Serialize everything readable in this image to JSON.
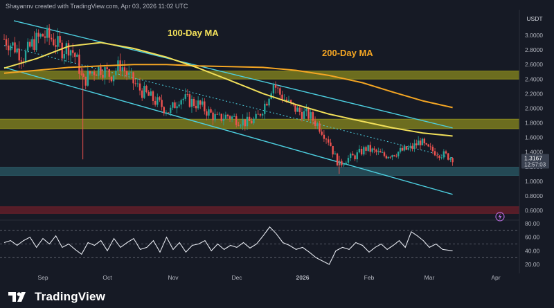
{
  "header": {
    "author_line": "Shayannv created with TradingView.com, Apr 03, 2026 11:02 UTC"
  },
  "currency": "USDT",
  "brand": {
    "name": "TradingView"
  },
  "colors": {
    "background": "#161a25",
    "up_candle": "#26a69a",
    "down_candle": "#ef5350",
    "ma100": "#f2e05a",
    "ma200": "#f5a623",
    "channel": "#4dd0e1",
    "zone_yellow": "#8a8a1e",
    "zone_blue": "#2a5a66",
    "zone_red": "#6b1f2a",
    "rsi_line": "#e6e9f0",
    "price_badge": "#3a4150"
  },
  "chart_data": {
    "type": "line",
    "title": "",
    "price_axis": {
      "ticks": [
        "3.0000",
        "2.8000",
        "2.6000",
        "2.4000",
        "2.2000",
        "2.0000",
        "1.8000",
        "1.6000",
        "1.4000",
        "1.2000",
        "1.0000",
        "0.8000",
        "0.6000"
      ],
      "range": [
        0.55,
        3.2
      ]
    },
    "time_axis": {
      "labels": [
        "Sep",
        "Oct",
        "Nov",
        "Dec",
        "2026",
        "Feb",
        "Mar",
        "Apr"
      ],
      "month_index": [
        0,
        1,
        2,
        3,
        4,
        5,
        6,
        7
      ]
    },
    "price_series": {
      "name": "",
      "x_month": [
        0.0,
        0.15,
        0.3,
        0.45,
        0.6,
        0.75,
        0.9,
        1.0,
        1.08,
        1.15,
        1.22,
        1.35,
        1.5,
        1.65,
        1.8,
        1.95,
        2.1,
        2.25,
        2.4,
        2.55,
        2.7,
        2.85,
        3.0,
        3.15,
        3.3,
        3.45,
        3.6,
        3.75,
        3.9,
        4.05,
        4.15,
        4.25,
        4.4,
        4.55,
        4.7,
        4.85,
        5.0,
        5.08,
        5.15,
        5.25,
        5.4,
        5.55,
        5.7,
        5.85,
        6.0,
        6.15,
        6.3,
        6.45,
        6.55,
        6.7,
        6.85,
        6.95
      ],
      "close": [
        2.95,
        2.85,
        2.7,
        2.9,
        3.0,
        2.95,
        2.8,
        2.85,
        2.75,
        2.6,
        2.35,
        2.5,
        2.55,
        2.45,
        2.6,
        2.4,
        2.25,
        2.15,
        2.05,
        1.95,
        2.15,
        2.1,
        2.05,
        1.95,
        1.85,
        1.9,
        1.85,
        1.8,
        1.85,
        2.1,
        2.35,
        2.2,
        2.05,
        1.95,
        1.9,
        1.75,
        1.55,
        1.35,
        1.22,
        1.3,
        1.35,
        1.45,
        1.4,
        1.35,
        1.38,
        1.42,
        1.45,
        1.55,
        1.45,
        1.4,
        1.35,
        1.32
      ]
    },
    "current_price_label": "1.3167",
    "countdown_label": "12:57:03",
    "ma100": {
      "name": "100-Day MA",
      "x_month": [
        0.0,
        0.5,
        1.0,
        1.5,
        2.0,
        2.5,
        3.0,
        3.5,
        4.0,
        4.5,
        5.0,
        5.5,
        6.0,
        6.5,
        6.95
      ],
      "values": [
        2.55,
        2.68,
        2.85,
        2.9,
        2.82,
        2.7,
        2.55,
        2.38,
        2.2,
        2.05,
        1.92,
        1.82,
        1.73,
        1.66,
        1.62
      ]
    },
    "ma200": {
      "name": "200-Day MA",
      "x_month": [
        0.0,
        0.5,
        1.0,
        1.5,
        2.0,
        2.5,
        3.0,
        3.5,
        4.0,
        4.5,
        5.0,
        5.5,
        6.0,
        6.5,
        6.95
      ],
      "values": [
        2.48,
        2.52,
        2.56,
        2.58,
        2.6,
        2.6,
        2.58,
        2.57,
        2.56,
        2.52,
        2.45,
        2.35,
        2.22,
        2.1,
        2.01
      ]
    },
    "channel_upper": {
      "x_month": [
        0.15,
        6.95
      ],
      "values": [
        3.2,
        1.73
      ]
    },
    "channel_lower": {
      "x_month": [
        0.0,
        6.95
      ],
      "values": [
        2.56,
        0.82
      ]
    },
    "channel_mid": {
      "x_month": [
        0.0,
        6.95
      ],
      "values": [
        2.86,
        1.32
      ]
    },
    "zones": [
      {
        "name": "resistance-upper",
        "low": 2.4,
        "high": 2.51,
        "color": "#8a8a1e"
      },
      {
        "name": "resistance-lower",
        "low": 1.72,
        "high": 1.85,
        "color": "#8a8a1e"
      },
      {
        "name": "support",
        "low": 1.08,
        "high": 1.19,
        "color": "#2a5a66"
      },
      {
        "name": "demand",
        "low": 0.56,
        "high": 0.65,
        "color": "#6b1f2a"
      }
    ],
    "rsi": {
      "ticks": [
        "80.00",
        "60.00",
        "40.00",
        "20.00"
      ],
      "range": [
        15,
        82
      ],
      "bands": [
        70,
        50,
        30
      ],
      "x_month": [
        0.0,
        0.1,
        0.2,
        0.3,
        0.4,
        0.5,
        0.6,
        0.7,
        0.8,
        0.9,
        1.0,
        1.1,
        1.2,
        1.3,
        1.4,
        1.5,
        1.6,
        1.7,
        1.8,
        1.9,
        2.0,
        2.1,
        2.2,
        2.3,
        2.4,
        2.5,
        2.6,
        2.7,
        2.8,
        2.9,
        3.0,
        3.1,
        3.2,
        3.3,
        3.4,
        3.5,
        3.6,
        3.7,
        3.8,
        3.9,
        4.0,
        4.1,
        4.2,
        4.3,
        4.4,
        4.5,
        4.6,
        4.7,
        4.8,
        4.9,
        5.0,
        5.1,
        5.2,
        5.3,
        5.4,
        5.5,
        5.6,
        5.7,
        5.8,
        5.9,
        6.0,
        6.1,
        6.2,
        6.3,
        6.4,
        6.5,
        6.6,
        6.7,
        6.8,
        6.95
      ],
      "values": [
        52,
        55,
        48,
        55,
        60,
        45,
        58,
        50,
        62,
        45,
        50,
        42,
        35,
        52,
        48,
        55,
        40,
        58,
        45,
        52,
        58,
        42,
        45,
        55,
        38,
        60,
        42,
        52,
        38,
        48,
        50,
        55,
        40,
        50,
        42,
        48,
        45,
        52,
        44,
        50,
        62,
        75,
        65,
        52,
        48,
        42,
        45,
        38,
        30,
        25,
        20,
        40,
        45,
        42,
        52,
        48,
        38,
        45,
        50,
        42,
        48,
        55,
        45,
        68,
        62,
        55,
        45,
        50,
        42,
        40
      ]
    }
  }
}
